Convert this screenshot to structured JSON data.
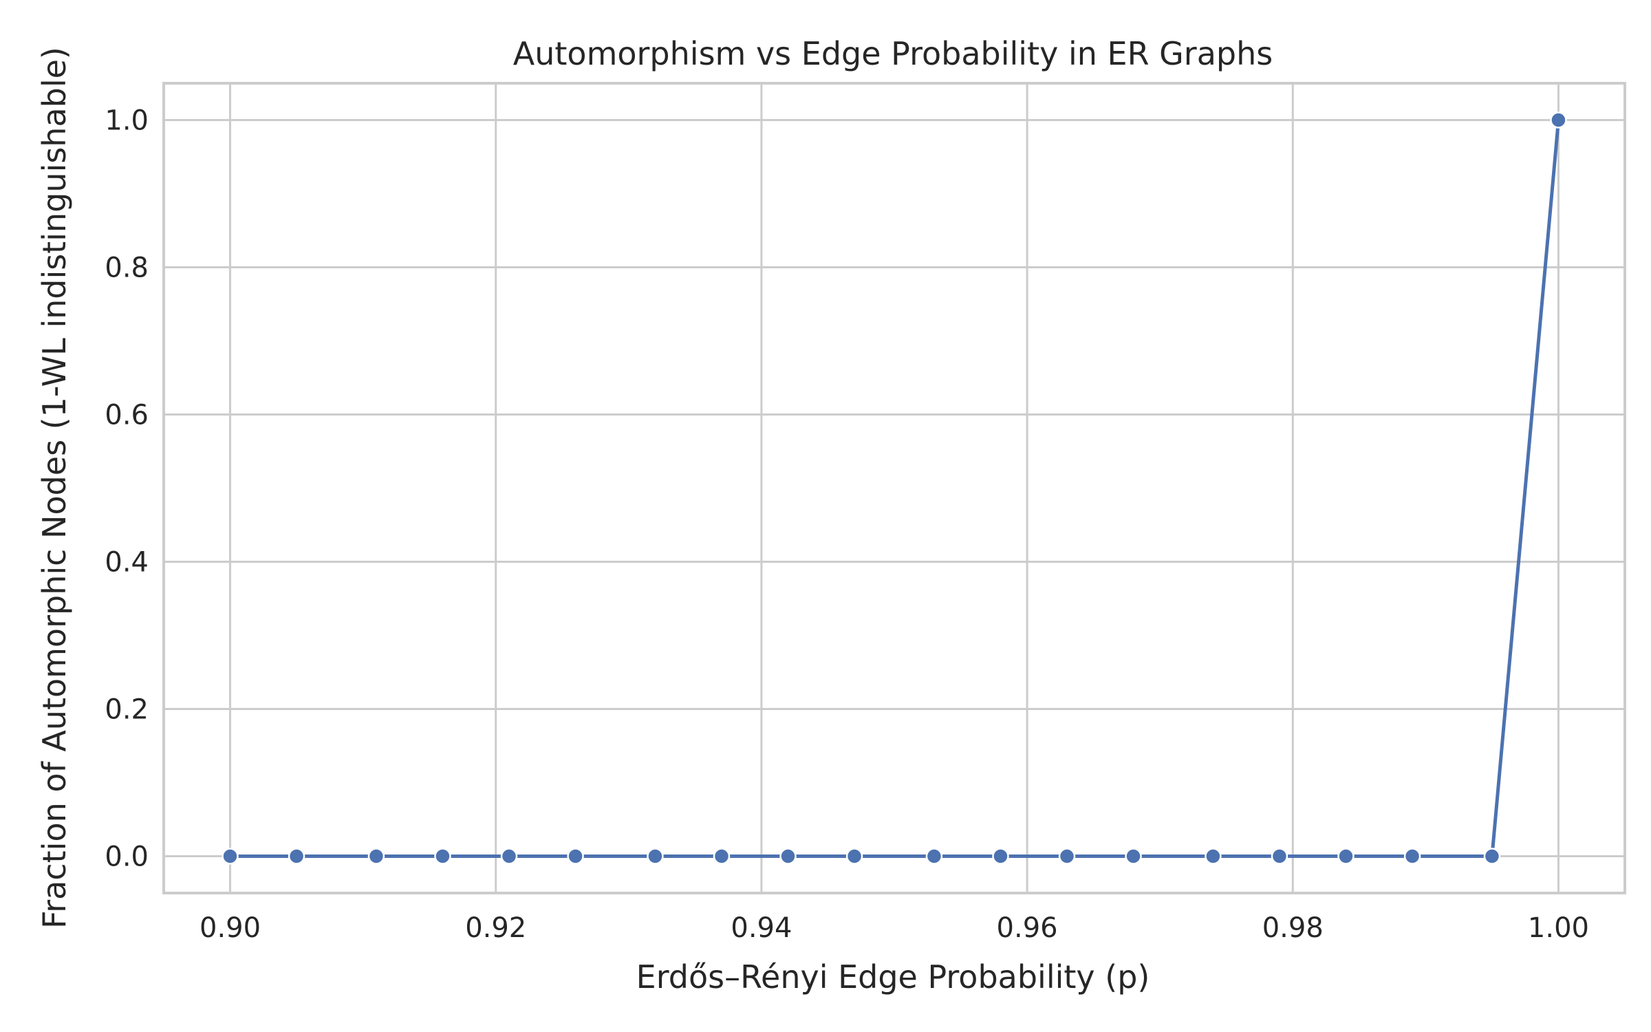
{
  "chart_data": {
    "type": "line",
    "title": "Automorphism vs Edge Probability in ER Graphs",
    "xlabel": "Erdős–Rényi Edge Probability (p)",
    "ylabel": "Fraction of Automorphic Nodes (1-WL indistinguishable)",
    "xlim": [
      0.895,
      1.005
    ],
    "ylim": [
      -0.05,
      1.05
    ],
    "x_ticks": [
      0.9,
      0.92,
      0.94,
      0.96,
      0.98,
      1.0
    ],
    "x_tick_labels": [
      "0.90",
      "0.92",
      "0.94",
      "0.96",
      "0.98",
      "1.00"
    ],
    "y_ticks": [
      0.0,
      0.2,
      0.4,
      0.6,
      0.8,
      1.0
    ],
    "y_tick_labels": [
      "0.0",
      "0.2",
      "0.4",
      "0.6",
      "0.8",
      "1.0"
    ],
    "grid": true,
    "series": [
      {
        "color": "#4c72b0",
        "marker": "circle",
        "x": [
          0.9,
          0.905,
          0.911,
          0.916,
          0.921,
          0.926,
          0.932,
          0.937,
          0.942,
          0.947,
          0.953,
          0.958,
          0.963,
          0.968,
          0.974,
          0.979,
          0.984,
          0.989,
          0.995,
          1.0
        ],
        "y": [
          0.0,
          0.0,
          0.0,
          0.0,
          0.0,
          0.0,
          0.0,
          0.0,
          0.0,
          0.0,
          0.0,
          0.0,
          0.0,
          0.0,
          0.0,
          0.0,
          0.0,
          0.0,
          0.0,
          1.0
        ]
      }
    ]
  }
}
